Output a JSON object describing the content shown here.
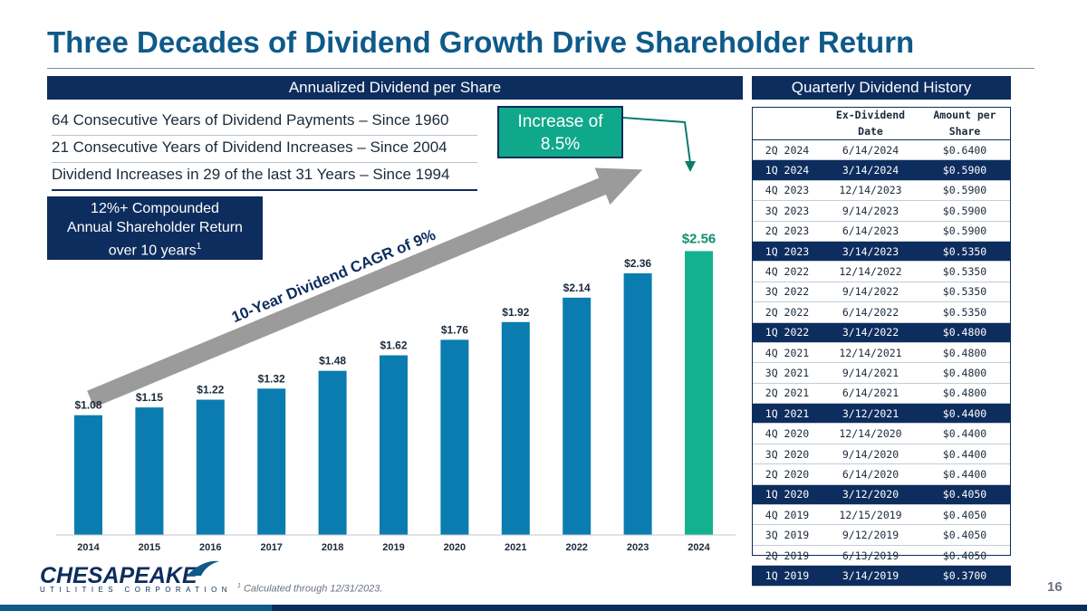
{
  "title": "Three Decades of Dividend Growth Drive Shareholder Return",
  "left_banner": "Annualized Dividend per Share",
  "right_banner": "Quarterly Dividend History",
  "facts": [
    "64 Consecutive Years of Dividend Payments – Since 1960",
    "21 Consecutive Years of Dividend Increases – Since 2004",
    "Dividend Increases in 29 of the last 31 Years – Since 1994"
  ],
  "tsr_box": {
    "line1": "12%+ Compounded",
    "line2": "Annual Shareholder Return",
    "line3": "over 10 years",
    "sup": "1"
  },
  "increase_box": {
    "line1": "Increase of",
    "line2": "8.5%"
  },
  "cagr_label": "10-Year Dividend CAGR of 9%",
  "colors": {
    "navy": "#0d2d5e",
    "bar": "#0a7cb0",
    "highlight_bar": "#14b18f",
    "title": "#0e5a8a",
    "arrow": "#9b9b9b"
  },
  "chart_data": {
    "type": "bar",
    "categories": [
      "2014",
      "2015",
      "2016",
      "2017",
      "2018",
      "2019",
      "2020",
      "2021",
      "2022",
      "2023",
      "2024"
    ],
    "values": [
      1.08,
      1.15,
      1.22,
      1.32,
      1.48,
      1.62,
      1.76,
      1.92,
      2.14,
      2.36,
      2.56
    ],
    "value_labels": [
      "$1.08",
      "$1.15",
      "$1.22",
      "$1.32",
      "$1.48",
      "$1.62",
      "$1.76",
      "$1.92",
      "$2.14",
      "$2.36",
      "$2.56"
    ],
    "highlight_index": 10,
    "ylim": [
      0,
      2.75
    ],
    "grid": false
  },
  "table": {
    "headers": [
      "",
      "Ex-Dividend Date",
      "Amount per Share"
    ],
    "header_lines": [
      [
        "",
        ""
      ],
      [
        "Ex-Dividend",
        "Date"
      ],
      [
        "Amount per",
        "Share"
      ]
    ],
    "rows": [
      {
        "q": "2Q 2024",
        "date": "6/14/2024",
        "amt": "$0.6400",
        "hl": false
      },
      {
        "q": "1Q 2024",
        "date": "3/14/2024",
        "amt": "$0.5900",
        "hl": true
      },
      {
        "q": "4Q 2023",
        "date": "12/14/2023",
        "amt": "$0.5900",
        "hl": false
      },
      {
        "q": "3Q 2023",
        "date": "9/14/2023",
        "amt": "$0.5900",
        "hl": false
      },
      {
        "q": "2Q 2023",
        "date": "6/14/2023",
        "amt": "$0.5900",
        "hl": false
      },
      {
        "q": "1Q 2023",
        "date": "3/14/2023",
        "amt": "$0.5350",
        "hl": true
      },
      {
        "q": "4Q 2022",
        "date": "12/14/2022",
        "amt": "$0.5350",
        "hl": false
      },
      {
        "q": "3Q 2022",
        "date": "9/14/2022",
        "amt": "$0.5350",
        "hl": false
      },
      {
        "q": "2Q 2022",
        "date": "6/14/2022",
        "amt": "$0.5350",
        "hl": false
      },
      {
        "q": "1Q 2022",
        "date": "3/14/2022",
        "amt": "$0.4800",
        "hl": true
      },
      {
        "q": "4Q 2021",
        "date": "12/14/2021",
        "amt": "$0.4800",
        "hl": false
      },
      {
        "q": "3Q 2021",
        "date": "9/14/2021",
        "amt": "$0.4800",
        "hl": false
      },
      {
        "q": "2Q 2021",
        "date": "6/14/2021",
        "amt": "$0.4800",
        "hl": false
      },
      {
        "q": "1Q 2021",
        "date": "3/12/2021",
        "amt": "$0.4400",
        "hl": true
      },
      {
        "q": "4Q 2020",
        "date": "12/14/2020",
        "amt": "$0.4400",
        "hl": false
      },
      {
        "q": "3Q 2020",
        "date": "9/14/2020",
        "amt": "$0.4400",
        "hl": false
      },
      {
        "q": "2Q 2020",
        "date": "6/14/2020",
        "amt": "$0.4400",
        "hl": false
      },
      {
        "q": "1Q 2020",
        "date": "3/12/2020",
        "amt": "$0.4050",
        "hl": true
      },
      {
        "q": "4Q 2019",
        "date": "12/15/2019",
        "amt": "$0.4050",
        "hl": false
      },
      {
        "q": "3Q 2019",
        "date": "9/12/2019",
        "amt": "$0.4050",
        "hl": false
      },
      {
        "q": "2Q 2019",
        "date": "6/13/2019",
        "amt": "$0.4050",
        "hl": false
      },
      {
        "q": "1Q 2019",
        "date": "3/14/2019",
        "amt": "$0.3700",
        "hl": true
      }
    ]
  },
  "logo": {
    "main": "CHESAPEAKE",
    "sub": "UTILITIES CORPORATION"
  },
  "footnote": {
    "sup": "1",
    "text": "Calculated through 12/31/2023."
  },
  "page_number": "16"
}
